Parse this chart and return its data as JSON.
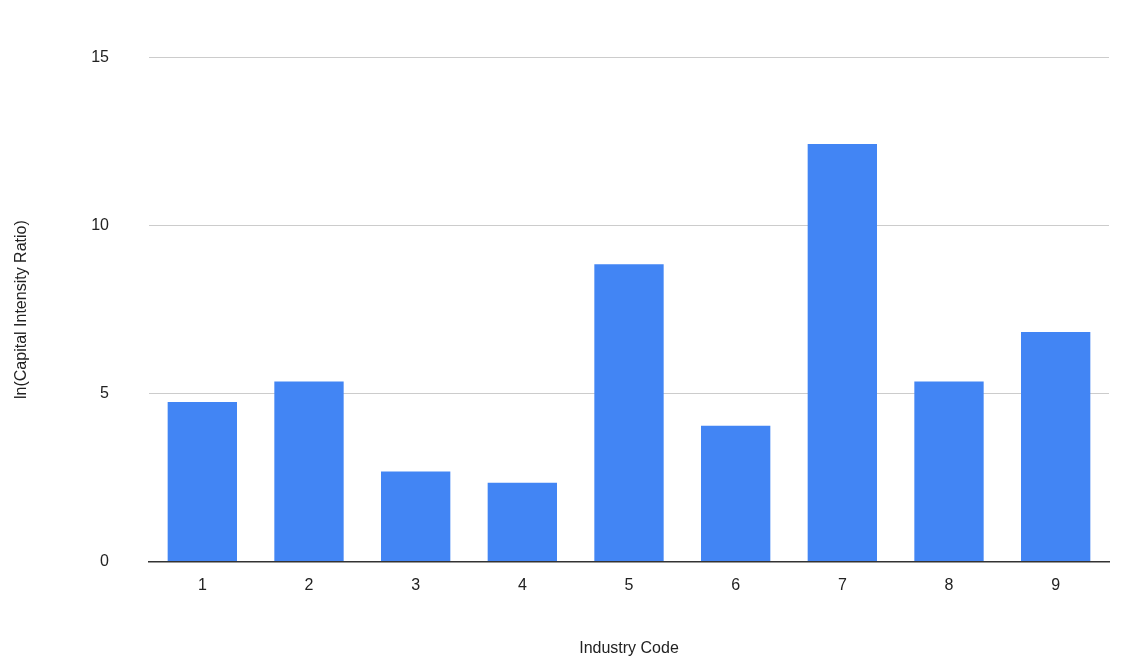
{
  "chart_data": {
    "type": "bar",
    "xlabel": "Industry Code",
    "ylabel": "ln(Capital Intensity Ratio)",
    "categories": [
      "1",
      "2",
      "3",
      "4",
      "5",
      "6",
      "7",
      "8",
      "9"
    ],
    "values": [
      4.75,
      5.36,
      2.68,
      2.35,
      8.85,
      4.04,
      12.43,
      5.36,
      6.83
    ],
    "color": "#4285f4",
    "ylim": [
      0,
      15
    ],
    "yticks": [
      0,
      5,
      10,
      15
    ],
    "grid": "y",
    "legend": false
  }
}
